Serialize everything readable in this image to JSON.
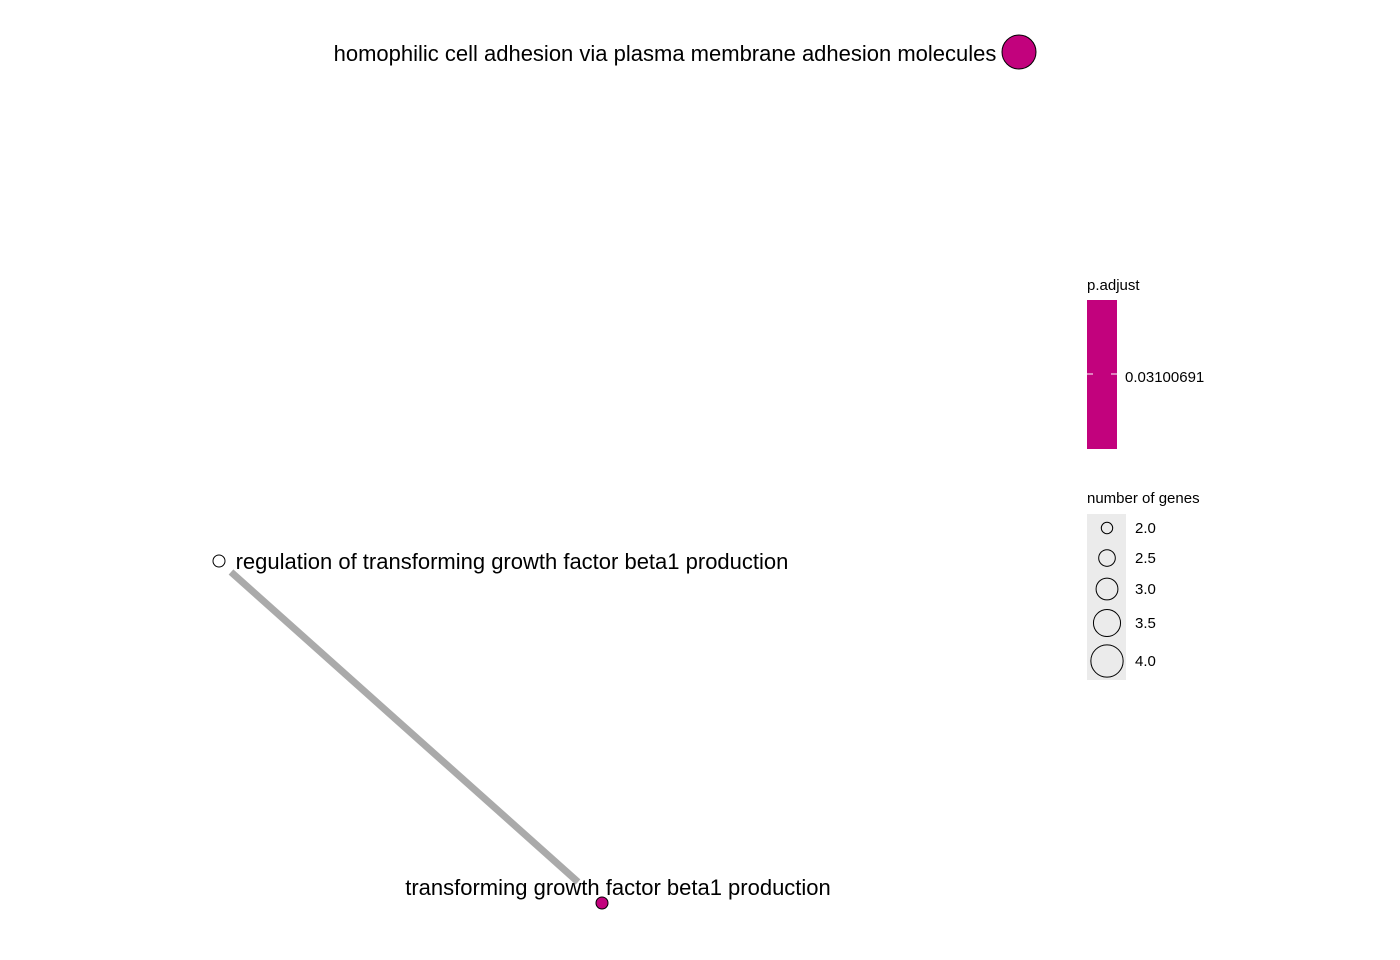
{
  "chart_data": {
    "type": "network",
    "nodes": [
      {
        "id": "n1",
        "label": "homophilic cell adhesion via plasma membrane adhesion molecules",
        "size": 4.0,
        "p_adjust": 0.03100691,
        "fill": "#c2027d"
      },
      {
        "id": "n2",
        "label": "regulation of transforming growth factor beta1 production",
        "size": 2.0,
        "p_adjust": null,
        "fill": "#ffffff"
      },
      {
        "id": "n3",
        "label": "transforming growth factor beta1 production",
        "size": 2.0,
        "p_adjust": 0.03100691,
        "fill": "#c2027d"
      }
    ],
    "edges": [
      {
        "source": "n2",
        "target": "n3",
        "color": "#aaaaaa"
      }
    ],
    "legend": {
      "color": {
        "title": "p.adjust",
        "label": "0.03100691",
        "color": "#c2027d"
      },
      "size": {
        "title": "number of genes",
        "entries": [
          "2.0",
          "2.5",
          "3.0",
          "3.5",
          "4.0"
        ],
        "values": [
          2.0,
          2.5,
          3.0,
          3.5,
          4.0
        ]
      }
    }
  }
}
